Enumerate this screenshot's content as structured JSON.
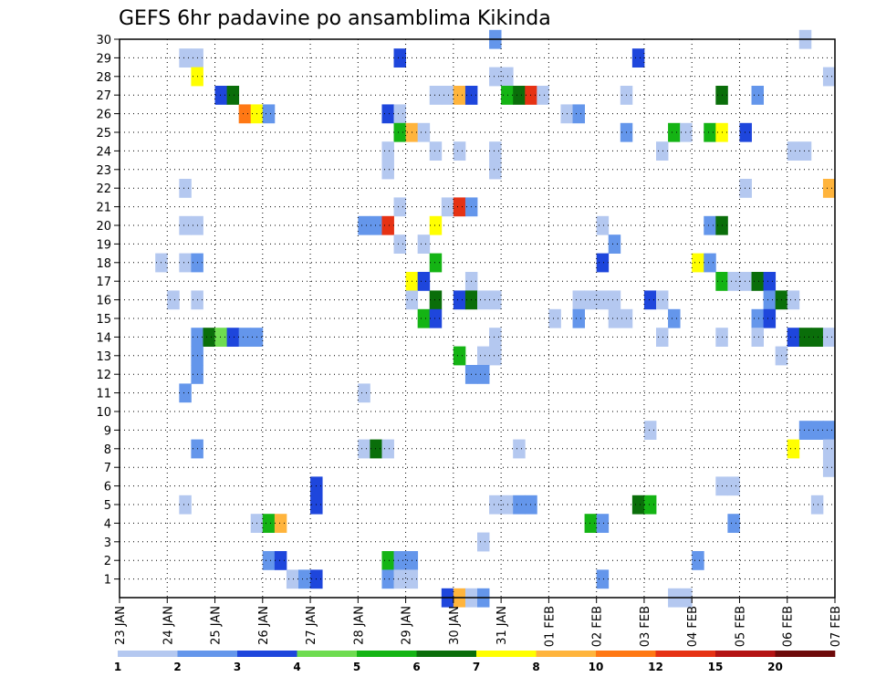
{
  "chart_data": {
    "type": "heatmap",
    "title": "GEFS 6hr padavine po ansamblima Kikinda",
    "xlabel": "",
    "ylabel": "",
    "x_range_days": [
      0,
      15
    ],
    "y_range": [
      0,
      30
    ],
    "x_ticks": [
      {
        "day": 0,
        "label": "23 JAN"
      },
      {
        "day": 1,
        "label": "24 JAN"
      },
      {
        "day": 2,
        "label": "25 JAN"
      },
      {
        "day": 3,
        "label": "26 JAN"
      },
      {
        "day": 4,
        "label": "27 JAN"
      },
      {
        "day": 5,
        "label": "28 JAN"
      },
      {
        "day": 6,
        "label": "29 JAN"
      },
      {
        "day": 7,
        "label": "30 JAN"
      },
      {
        "day": 8,
        "label": "31 JAN"
      },
      {
        "day": 9,
        "label": "01 FEB"
      },
      {
        "day": 10,
        "label": "02 FEB"
      },
      {
        "day": 11,
        "label": "03 FEB"
      },
      {
        "day": 12,
        "label": "04 FEB"
      },
      {
        "day": 13,
        "label": "05 FEB"
      },
      {
        "day": 14,
        "label": "06 FEB"
      },
      {
        "day": 15,
        "label": "07 FEB"
      }
    ],
    "y_ticks": [
      1,
      2,
      3,
      4,
      5,
      6,
      7,
      8,
      9,
      10,
      11,
      12,
      13,
      14,
      15,
      16,
      17,
      18,
      19,
      20,
      21,
      22,
      23,
      24,
      25,
      26,
      27,
      28,
      29,
      30
    ],
    "legend": {
      "placement": "bottom",
      "labels": [
        "1",
        "2",
        "3",
        "4",
        "5",
        "6",
        "7",
        "8",
        "10",
        "12",
        "15",
        "20"
      ],
      "colors": [
        "#b4c8f0",
        "#6496eb",
        "#1e46dc",
        "#6edc50",
        "#14b414",
        "#0a6e0a",
        "#ffff00",
        "#ffb43c",
        "#ff7814",
        "#e63214",
        "#b41414",
        "#6e0a0a"
      ]
    },
    "cells_note": "Each cell: member (y), time step index t (0-59 = 6h steps from 23 JAN 00), class c (0-11 = legend bin index)",
    "cells": [
      [
        30,
        31,
        1
      ],
      [
        30,
        57,
        0
      ],
      [
        29,
        5,
        0
      ],
      [
        29,
        6,
        0
      ],
      [
        29,
        23,
        2
      ],
      [
        29,
        43,
        2
      ],
      [
        28,
        6,
        6
      ],
      [
        28,
        31,
        0
      ],
      [
        28,
        32,
        0
      ],
      [
        28,
        59,
        0
      ],
      [
        27,
        8,
        2
      ],
      [
        27,
        9,
        5
      ],
      [
        27,
        26,
        0
      ],
      [
        27,
        27,
        0
      ],
      [
        27,
        28,
        7
      ],
      [
        27,
        29,
        2
      ],
      [
        27,
        32,
        4
      ],
      [
        27,
        33,
        5
      ],
      [
        27,
        34,
        9
      ],
      [
        27,
        35,
        0
      ],
      [
        27,
        42,
        0
      ],
      [
        27,
        50,
        5
      ],
      [
        27,
        53,
        1
      ],
      [
        26,
        10,
        8
      ],
      [
        26,
        11,
        6
      ],
      [
        26,
        12,
        1
      ],
      [
        26,
        22,
        2
      ],
      [
        26,
        23,
        0
      ],
      [
        26,
        37,
        0
      ],
      [
        26,
        38,
        1
      ],
      [
        25,
        23,
        4
      ],
      [
        25,
        24,
        7
      ],
      [
        25,
        25,
        0
      ],
      [
        25,
        42,
        1
      ],
      [
        25,
        46,
        4
      ],
      [
        25,
        47,
        0
      ],
      [
        25,
        49,
        4
      ],
      [
        25,
        50,
        6
      ],
      [
        25,
        52,
        2
      ],
      [
        24,
        22,
        0
      ],
      [
        24,
        26,
        0
      ],
      [
        24,
        28,
        0
      ],
      [
        24,
        31,
        0
      ],
      [
        24,
        45,
        0
      ],
      [
        24,
        56,
        0
      ],
      [
        24,
        57,
        0
      ],
      [
        23,
        22,
        0
      ],
      [
        23,
        31,
        0
      ],
      [
        22,
        5,
        0
      ],
      [
        22,
        52,
        0
      ],
      [
        22,
        59,
        7
      ],
      [
        21,
        23,
        0
      ],
      [
        21,
        27,
        0
      ],
      [
        21,
        28,
        9
      ],
      [
        21,
        29,
        1
      ],
      [
        20,
        5,
        0
      ],
      [
        20,
        6,
        0
      ],
      [
        20,
        20,
        1
      ],
      [
        20,
        21,
        1
      ],
      [
        20,
        22,
        9
      ],
      [
        20,
        26,
        6
      ],
      [
        20,
        40,
        0
      ],
      [
        20,
        49,
        1
      ],
      [
        20,
        50,
        5
      ],
      [
        19,
        23,
        0
      ],
      [
        19,
        25,
        0
      ],
      [
        19,
        41,
        1
      ],
      [
        18,
        3,
        0
      ],
      [
        18,
        5,
        0
      ],
      [
        18,
        6,
        1
      ],
      [
        18,
        26,
        4
      ],
      [
        18,
        40,
        2
      ],
      [
        18,
        48,
        6
      ],
      [
        18,
        49,
        1
      ],
      [
        17,
        24,
        6
      ],
      [
        17,
        25,
        2
      ],
      [
        17,
        29,
        0
      ],
      [
        17,
        50,
        4
      ],
      [
        17,
        51,
        0
      ],
      [
        17,
        52,
        0
      ],
      [
        17,
        53,
        5
      ],
      [
        17,
        54,
        2
      ],
      [
        16,
        4,
        0
      ],
      [
        16,
        6,
        0
      ],
      [
        16,
        24,
        0
      ],
      [
        16,
        26,
        5
      ],
      [
        16,
        28,
        2
      ],
      [
        16,
        29,
        5
      ],
      [
        16,
        30,
        0
      ],
      [
        16,
        31,
        0
      ],
      [
        16,
        38,
        0
      ],
      [
        16,
        39,
        0
      ],
      [
        16,
        40,
        0
      ],
      [
        16,
        41,
        0
      ],
      [
        16,
        44,
        2
      ],
      [
        16,
        45,
        0
      ],
      [
        16,
        54,
        1
      ],
      [
        16,
        55,
        5
      ],
      [
        16,
        56,
        0
      ],
      [
        15,
        25,
        4
      ],
      [
        15,
        26,
        2
      ],
      [
        15,
        36,
        0
      ],
      [
        15,
        38,
        1
      ],
      [
        15,
        41,
        0
      ],
      [
        15,
        42,
        0
      ],
      [
        15,
        46,
        1
      ],
      [
        15,
        53,
        1
      ],
      [
        15,
        54,
        2
      ],
      [
        14,
        6,
        1
      ],
      [
        14,
        7,
        5
      ],
      [
        14,
        8,
        3
      ],
      [
        14,
        9,
        2
      ],
      [
        14,
        10,
        1
      ],
      [
        14,
        11,
        1
      ],
      [
        14,
        31,
        0
      ],
      [
        14,
        45,
        0
      ],
      [
        14,
        50,
        0
      ],
      [
        14,
        53,
        0
      ],
      [
        14,
        56,
        2
      ],
      [
        14,
        57,
        5
      ],
      [
        14,
        58,
        5
      ],
      [
        14,
        59,
        0
      ],
      [
        13,
        6,
        1
      ],
      [
        13,
        28,
        4
      ],
      [
        13,
        30,
        0
      ],
      [
        13,
        31,
        0
      ],
      [
        13,
        55,
        0
      ],
      [
        12,
        6,
        1
      ],
      [
        12,
        29,
        1
      ],
      [
        12,
        30,
        1
      ],
      [
        11,
        5,
        1
      ],
      [
        11,
        20,
        0
      ],
      [
        9,
        44,
        0
      ],
      [
        9,
        57,
        1
      ],
      [
        9,
        58,
        1
      ],
      [
        9,
        59,
        1
      ],
      [
        8,
        6,
        1
      ],
      [
        8,
        20,
        0
      ],
      [
        8,
        21,
        5
      ],
      [
        8,
        22,
        0
      ],
      [
        8,
        33,
        0
      ],
      [
        8,
        56,
        6
      ],
      [
        8,
        59,
        0
      ],
      [
        7,
        59,
        0
      ],
      [
        6,
        16,
        2
      ],
      [
        6,
        50,
        0
      ],
      [
        6,
        51,
        0
      ],
      [
        5,
        5,
        0
      ],
      [
        5,
        16,
        2
      ],
      [
        5,
        31,
        0
      ],
      [
        5,
        32,
        0
      ],
      [
        5,
        33,
        1
      ],
      [
        5,
        34,
        1
      ],
      [
        5,
        43,
        5
      ],
      [
        5,
        44,
        4
      ],
      [
        5,
        58,
        0
      ],
      [
        4,
        11,
        0
      ],
      [
        4,
        12,
        4
      ],
      [
        4,
        13,
        7
      ],
      [
        4,
        39,
        4
      ],
      [
        4,
        40,
        1
      ],
      [
        4,
        51,
        1
      ],
      [
        3,
        30,
        0
      ],
      [
        2,
        12,
        1
      ],
      [
        2,
        13,
        2
      ],
      [
        2,
        22,
        4
      ],
      [
        2,
        23,
        1
      ],
      [
        2,
        24,
        1
      ],
      [
        2,
        48,
        1
      ],
      [
        1,
        14,
        0
      ],
      [
        1,
        15,
        1
      ],
      [
        1,
        16,
        2
      ],
      [
        1,
        22,
        1
      ],
      [
        1,
        23,
        0
      ],
      [
        1,
        24,
        0
      ],
      [
        1,
        40,
        1
      ],
      [
        0,
        27,
        2
      ],
      [
        0,
        28,
        7
      ],
      [
        0,
        29,
        0
      ],
      [
        0,
        30,
        1
      ],
      [
        0,
        46,
        0
      ],
      [
        0,
        47,
        0
      ]
    ]
  }
}
